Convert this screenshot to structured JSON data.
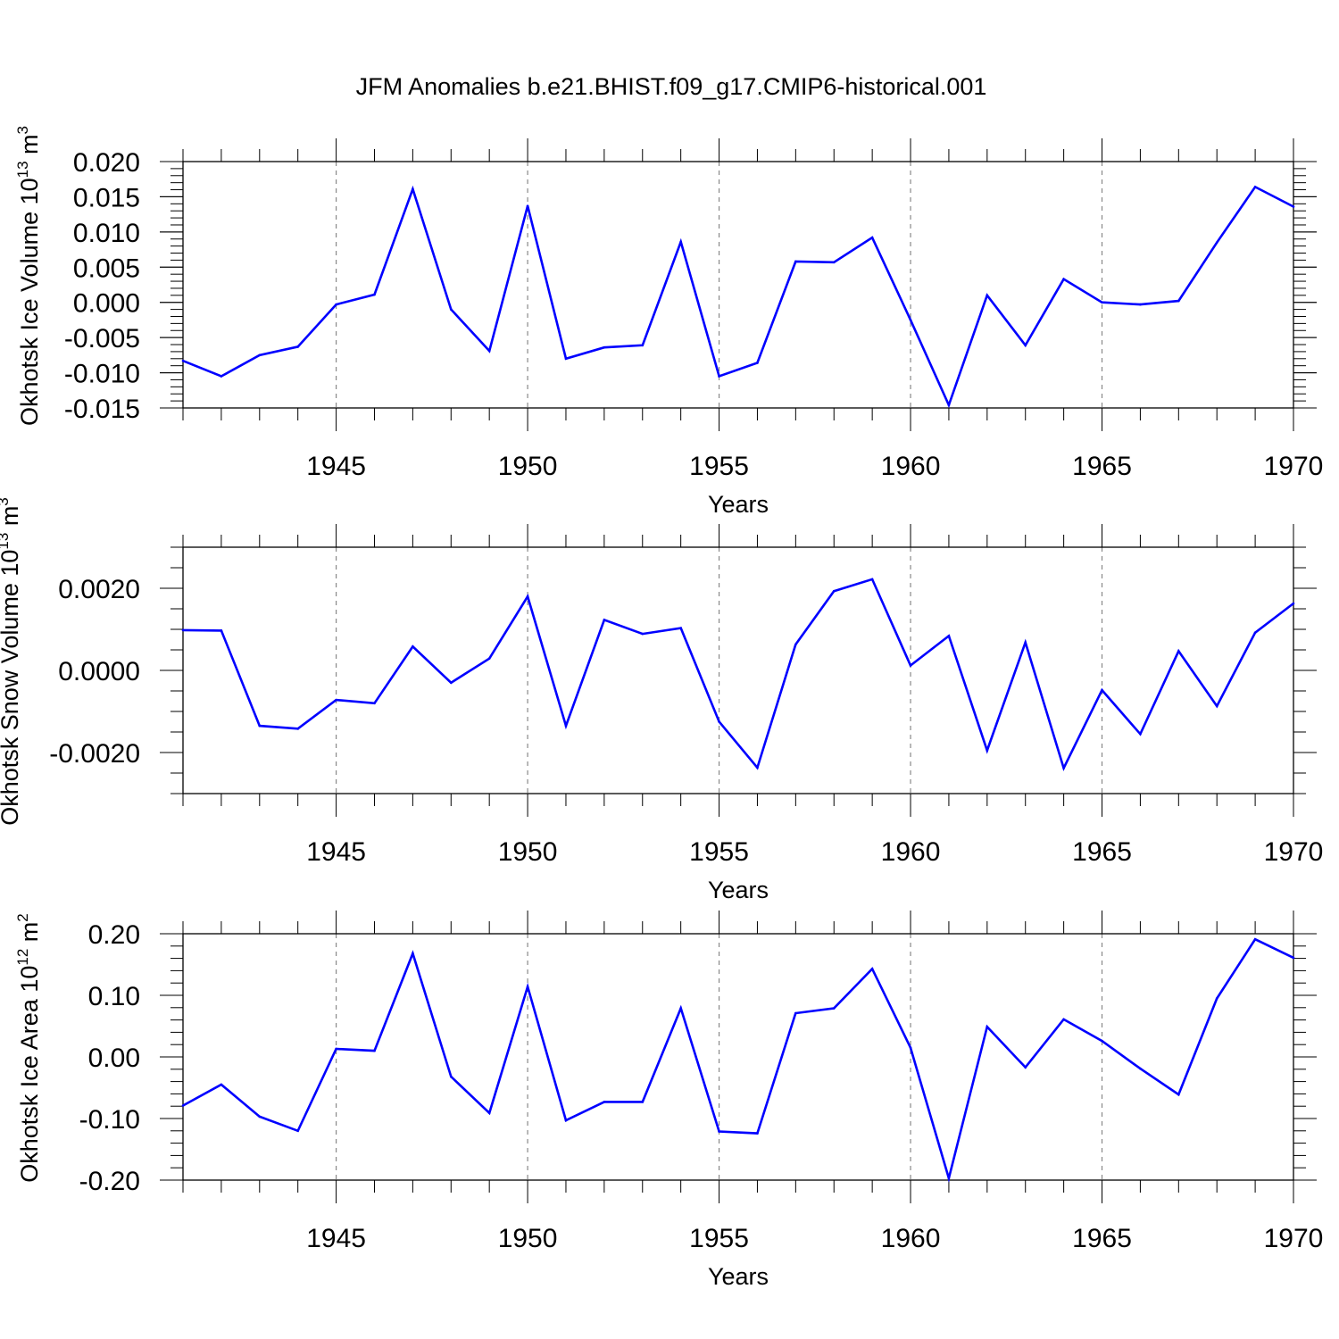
{
  "title": "JFM Anomalies b.e21.BHIST.f09_g17.CMIP6-historical.001",
  "line_color": "#0000ff",
  "chart_data": [
    {
      "type": "line",
      "ylabel_main": "Okhotsk Ice Volume 10",
      "ylabel_exp1": "13",
      "ylabel_mid": " m",
      "ylabel_exp2": "3",
      "xlabel": "Years",
      "xlim": [
        1941,
        1970
      ],
      "ylim": [
        -0.015,
        0.02
      ],
      "yticks": [
        -0.015,
        -0.01,
        -0.005,
        0.0,
        0.005,
        0.01,
        0.015,
        0.02
      ],
      "ytick_labels": [
        "-0.015",
        "-0.010",
        "-0.005",
        "0.000",
        "0.005",
        "0.010",
        "0.015",
        "0.020"
      ],
      "yminor_step": 0.001,
      "xticks": [
        1945,
        1950,
        1955,
        1960,
        1965,
        1970
      ],
      "xtick_labels": [
        "1945",
        "1950",
        "1955",
        "1960",
        "1965",
        "1970"
      ],
      "x": [
        1941,
        1942,
        1943,
        1944,
        1945,
        1946,
        1947,
        1948,
        1949,
        1950,
        1951,
        1952,
        1953,
        1954,
        1955,
        1956,
        1957,
        1958,
        1959,
        1960,
        1961,
        1962,
        1963,
        1964,
        1965,
        1966,
        1967,
        1968,
        1969,
        1970
      ],
      "values": [
        -0.0083,
        -0.0105,
        -0.0075,
        -0.0063,
        -0.0003,
        0.0011,
        0.0161,
        -0.001,
        -0.0069,
        0.0137,
        -0.008,
        -0.0064,
        -0.0061,
        0.0086,
        -0.0105,
        -0.0086,
        0.0058,
        0.0057,
        0.0092,
        -0.0025,
        -0.0146,
        0.001,
        -0.0061,
        0.0033,
        0.0,
        -0.0003,
        0.0002,
        0.0085,
        0.0164,
        0.0136
      ]
    },
    {
      "type": "line",
      "ylabel_main": "Okhotsk Snow Volume 10",
      "ylabel_exp1": "13",
      "ylabel_mid": " m",
      "ylabel_exp2": "3",
      "xlabel": "Years",
      "xlim": [
        1941,
        1970
      ],
      "ylim": [
        -0.003,
        0.003
      ],
      "yticks": [
        -0.002,
        0.0,
        0.002
      ],
      "ytick_labels": [
        "-0.0020",
        "0.0000",
        "0.0020"
      ],
      "yminor_step": 0.0005,
      "xticks": [
        1945,
        1950,
        1955,
        1960,
        1965,
        1970
      ],
      "xtick_labels": [
        "1945",
        "1950",
        "1955",
        "1960",
        "1965",
        "1970"
      ],
      "x": [
        1941,
        1942,
        1943,
        1944,
        1945,
        1946,
        1947,
        1948,
        1949,
        1950,
        1951,
        1952,
        1953,
        1954,
        1955,
        1956,
        1957,
        1958,
        1959,
        1960,
        1961,
        1962,
        1963,
        1964,
        1965,
        1966,
        1967,
        1968,
        1969,
        1970
      ],
      "values": [
        0.00098,
        0.00097,
        -0.00135,
        -0.00142,
        -0.00072,
        -0.0008,
        0.00058,
        -0.0003,
        0.00029,
        0.0018,
        -0.00135,
        0.00123,
        0.00089,
        0.00103,
        -0.00125,
        -0.00237,
        0.00063,
        0.00193,
        0.00222,
        0.00012,
        0.00084,
        -0.00195,
        0.00068,
        -0.00238,
        -0.00048,
        -0.00155,
        0.00047,
        -0.00087,
        0.00092,
        0.00163
      ]
    },
    {
      "type": "line",
      "ylabel_main": "Okhotsk Ice Area 10",
      "ylabel_exp1": "12",
      "ylabel_mid": " m",
      "ylabel_exp2": "2",
      "xlabel": "Years",
      "xlim": [
        1941,
        1970
      ],
      "ylim": [
        -0.2,
        0.2
      ],
      "yticks": [
        -0.2,
        -0.1,
        0.0,
        0.1,
        0.2
      ],
      "ytick_labels": [
        "-0.20",
        "-0.10",
        "0.00",
        "0.10",
        "0.20"
      ],
      "yminor_step": 0.02,
      "xticks": [
        1945,
        1950,
        1955,
        1960,
        1965,
        1970
      ],
      "xtick_labels": [
        "1945",
        "1950",
        "1955",
        "1960",
        "1965",
        "1970"
      ],
      "x": [
        1941,
        1942,
        1943,
        1944,
        1945,
        1946,
        1947,
        1948,
        1949,
        1950,
        1951,
        1952,
        1953,
        1954,
        1955,
        1956,
        1957,
        1958,
        1959,
        1960,
        1961,
        1962,
        1963,
        1964,
        1965,
        1966,
        1967,
        1968,
        1969,
        1970
      ],
      "values": [
        -0.079,
        -0.045,
        -0.097,
        -0.12,
        0.013,
        0.01,
        0.168,
        -0.032,
        -0.091,
        0.114,
        -0.103,
        -0.073,
        -0.073,
        0.079,
        -0.121,
        -0.124,
        0.071,
        0.079,
        0.143,
        0.015,
        -0.197,
        0.049,
        -0.017,
        0.061,
        0.026,
        -0.019,
        -0.061,
        0.095,
        0.191,
        0.161
      ]
    }
  ]
}
